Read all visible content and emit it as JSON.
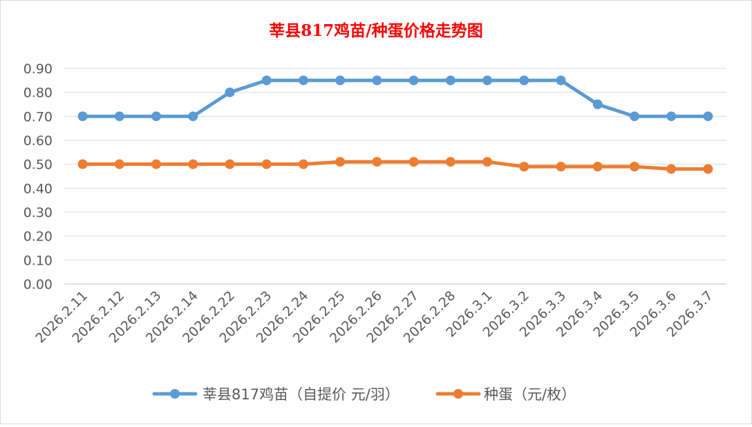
{
  "chart_data": {
    "type": "line",
    "title": "莘县817鸡苗/种蛋价格走势图",
    "title_color": "#ff0000",
    "categories": [
      "2026.2.11",
      "2026.2.12",
      "2026.2.13",
      "2026.2.14",
      "2026.2.22",
      "2026.2.23",
      "2026.2.24",
      "2026.2.25",
      "2026.2.26",
      "2026.2.27",
      "2026.2.28",
      "2026.3.1",
      "2026.3.2",
      "2026.3.3",
      "2026.3.4",
      "2026.3.5",
      "2026.3.6",
      "2026.3.7"
    ],
    "series": [
      {
        "name": "莘县817鸡苗（自提价 元/羽）",
        "color": "#5b9bd5",
        "values": [
          0.7,
          0.7,
          0.7,
          0.7,
          0.8,
          0.85,
          0.85,
          0.85,
          0.85,
          0.85,
          0.85,
          0.85,
          0.85,
          0.85,
          0.75,
          0.7,
          0.7,
          0.7
        ]
      },
      {
        "name": "种蛋（元/枚）",
        "color": "#ed7d31",
        "values": [
          0.5,
          0.5,
          0.5,
          0.5,
          0.5,
          0.5,
          0.5,
          0.51,
          0.51,
          0.51,
          0.51,
          0.51,
          0.49,
          0.49,
          0.49,
          0.49,
          0.48,
          0.48
        ]
      }
    ],
    "ylim": [
      0,
      0.9
    ],
    "yticks": [
      "0.00",
      "0.10",
      "0.20",
      "0.30",
      "0.40",
      "0.50",
      "0.60",
      "0.70",
      "0.80",
      "0.90"
    ],
    "grid": true,
    "legend_position": "bottom"
  }
}
